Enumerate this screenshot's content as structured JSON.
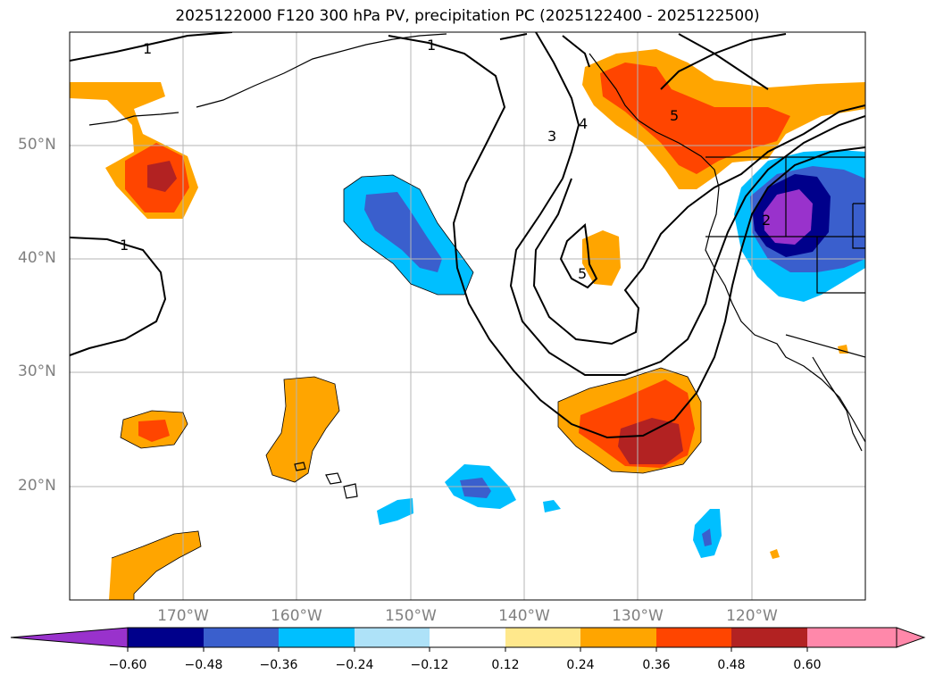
{
  "title": "2025122000 F120 300 hPa PV, precipitation PC (2025122400 - 2025122500)",
  "map": {
    "lat_labels": [
      "50°N",
      "40°N",
      "30°N",
      "20°N"
    ],
    "lon_labels": [
      "170°W",
      "160°W",
      "150°W",
      "140°W",
      "130°W",
      "120°W"
    ],
    "contour_labels": [
      "1",
      "1",
      "1",
      "3",
      "4",
      "5",
      "5",
      "2"
    ]
  },
  "colorbar": {
    "ticks": [
      "−0.60",
      "−0.48",
      "−0.36",
      "−0.24",
      "−0.12",
      "0.12",
      "0.24",
      "0.36",
      "0.48",
      "0.60"
    ],
    "colors": [
      "#9932cc",
      "#00008b",
      "#3a5fcd",
      "#00bfff",
      "#aee2f8",
      "#ffffff",
      "#ffe88c",
      "#ffa500",
      "#ff4500",
      "#b22222",
      "#ff88aa"
    ]
  }
}
